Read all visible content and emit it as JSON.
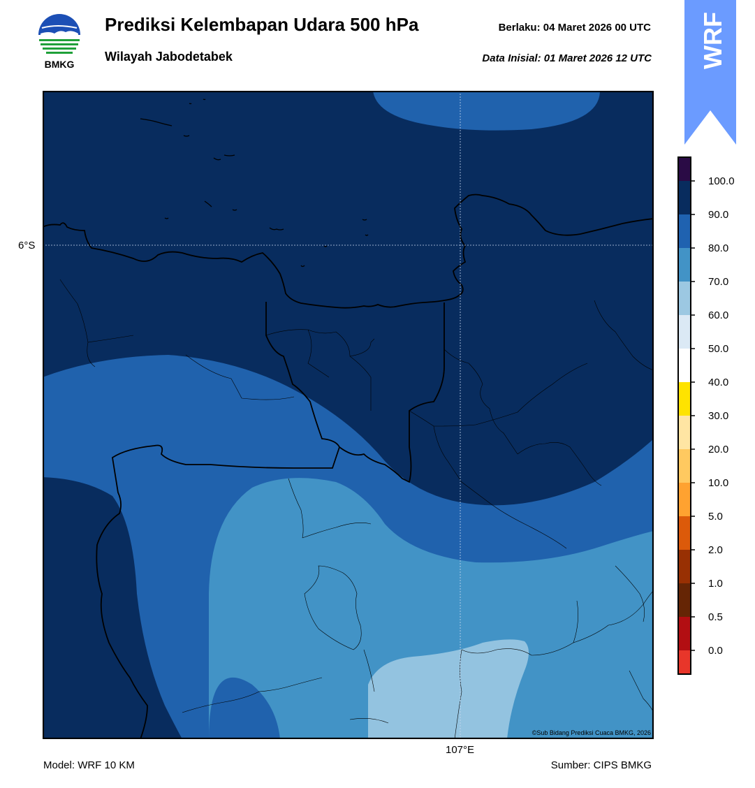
{
  "header": {
    "title": "Prediksi Kelembapan Udara 500 hPa",
    "subtitle": "Wilayah Jabodetabek",
    "valid_time": "Berlaku:  04 Maret 2026 00 UTC",
    "initial_time": "Data Inisial:  01 Maret 2026 12 UTC",
    "logo_text": "BMKG",
    "model_badge": "WRF"
  },
  "map": {
    "lat_label": "6°S",
    "lon_label": "107°E",
    "copyright": "©Sub Bidang Prediksi Cuaca BMKG, 2026"
  },
  "colorbar": {
    "labels": [
      "100.0",
      "90.0",
      "80.0",
      "70.0",
      "60.0",
      "50.0",
      "40.0",
      "30.0",
      "20.0",
      "10.0",
      "5.0",
      "2.0",
      "1.0",
      "0.5",
      "0.0"
    ],
    "colors": [
      "#2a0b45",
      "#082c5e",
      "#1f62b0",
      "#4293c6",
      "#9cc8e2",
      "#dbe9f5",
      "#ffffff",
      "#fee300",
      "#ffe5a3",
      "#ffc960",
      "#ffa230",
      "#dc5a0a",
      "#983003",
      "#652505",
      "#b20e12",
      "#e8362a"
    ]
  },
  "footer": {
    "model": "Model: WRF 10 KM",
    "source": "Sumber: CIPS BMKG"
  },
  "colors": {
    "humid_90_100": "#082c5e",
    "humid_80_90": "#2062ad",
    "humid_70_80": "#4293c6",
    "humid_60_70": "#93c3e0",
    "badge": "#6b9bff"
  }
}
